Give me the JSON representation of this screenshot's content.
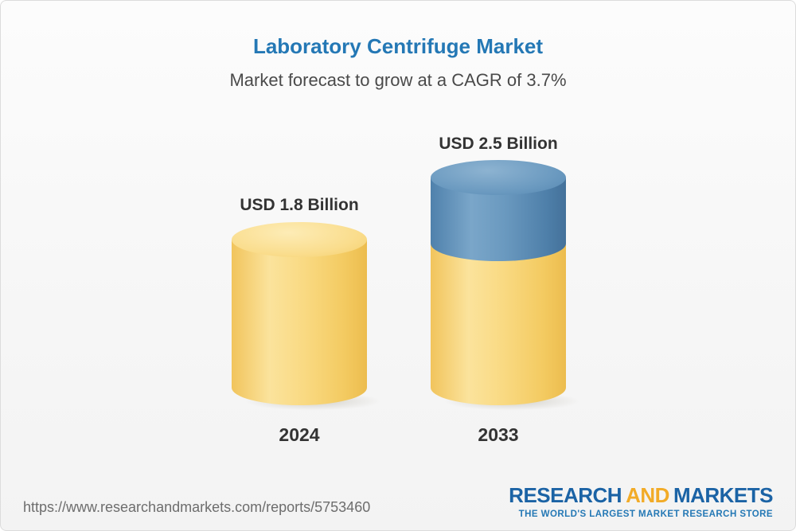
{
  "chart_data": {
    "type": "bar",
    "title": "Laboratory Centrifuge Market",
    "subtitle": "Market forecast to grow at a CAGR of 3.7%",
    "cagr_percent": 3.7,
    "unit": "USD Billion",
    "categories": [
      "2024",
      "2033"
    ],
    "values": [
      1.8,
      2.5
    ],
    "value_labels": [
      "USD 1.8 Billion",
      "USD 2.5 Billion"
    ],
    "series": [
      {
        "name": "base",
        "values": [
          1.8,
          1.8
        ],
        "color": "#F6CE6A"
      },
      {
        "name": "growth",
        "values": [
          0,
          0.7
        ],
        "color": "#5989B4"
      }
    ],
    "legend": "none",
    "grid": false,
    "title_color": "#2478B5"
  },
  "footer": {
    "url": "https://www.researchandmarkets.com/reports/5753460",
    "logo": {
      "research": "RESEARCH",
      "and": "AND",
      "markets": "MARKETS",
      "tagline": "THE WORLD'S LARGEST MARKET RESEARCH STORE"
    }
  }
}
